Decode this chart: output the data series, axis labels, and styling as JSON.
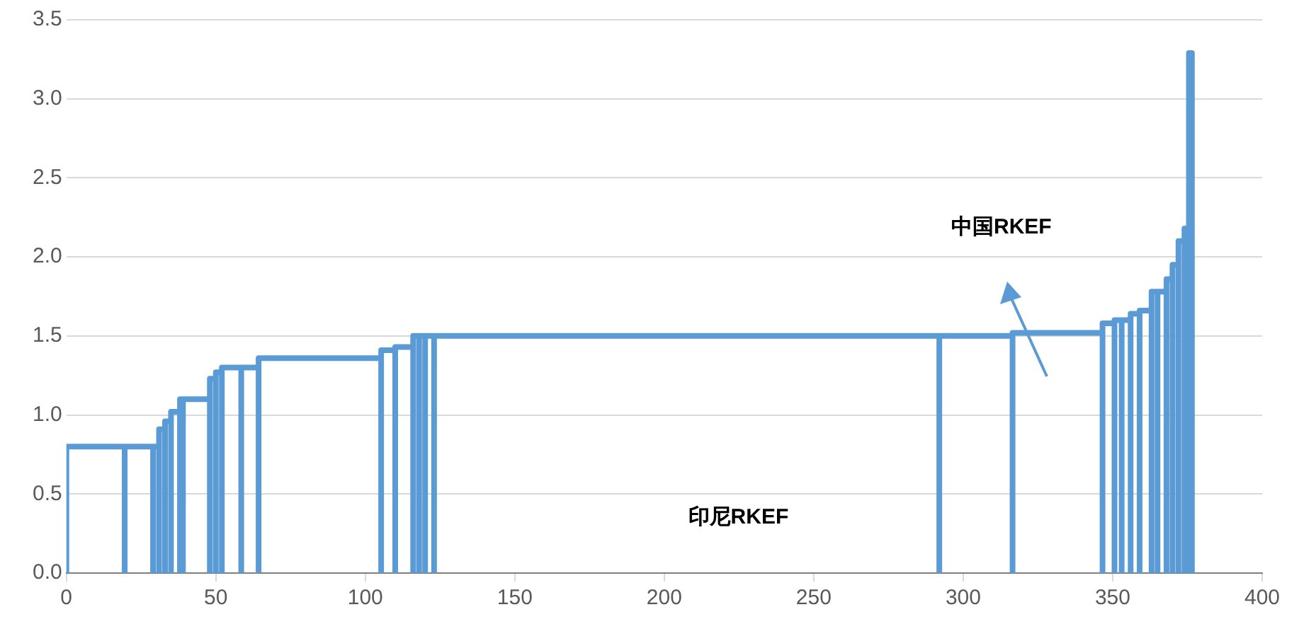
{
  "chart_data": {
    "type": "line",
    "xlim": [
      0,
      400
    ],
    "xticks": [
      0,
      50,
      100,
      150,
      200,
      250,
      300,
      350,
      400
    ],
    "ylim": [
      0,
      3.5
    ],
    "yticks": [
      {
        "value": 0,
        "label": "0.0"
      },
      0.5,
      {
        "value": 1,
        "label": "1.0"
      },
      1.5,
      {
        "value": 2,
        "label": "2.0"
      },
      2.5,
      {
        "value": 3,
        "label": "3.0"
      },
      3.5
    ],
    "grid": "y",
    "marker": "none",
    "annotations": [
      "中国RKEF",
      "印尼RKEF"
    ],
    "series": [
      {
        "color": "#5b9bd5",
        "x": [
          0,
          0,
          19.5,
          19.5,
          19.5,
          19.5,
          29,
          29,
          29,
          29,
          31,
          31,
          31,
          31,
          33,
          33,
          33,
          33,
          35,
          35,
          35,
          35,
          38,
          38,
          38,
          38,
          39,
          39,
          39,
          39,
          48,
          48,
          48,
          48,
          50,
          50,
          50,
          50,
          52,
          52,
          52,
          52,
          58.5,
          58.5,
          58.5,
          58.5,
          64.3,
          64.3,
          64.3,
          64.3,
          105.3,
          105.3,
          105.3,
          105.3,
          110,
          110,
          110,
          110,
          116,
          116,
          116,
          116,
          118,
          118,
          118,
          118,
          120,
          120,
          120,
          120,
          123,
          123,
          123,
          123,
          292,
          292,
          292,
          292,
          316.5,
          316.5,
          316.5,
          316.5,
          346.6,
          346.6,
          346.6,
          346.6,
          350.6,
          350.6,
          350.6,
          350.6,
          353,
          353,
          353,
          353,
          356,
          356,
          356,
          356,
          359,
          359,
          359,
          359,
          363,
          363,
          363,
          363,
          365,
          365,
          365,
          365,
          368,
          368,
          368,
          368,
          370,
          370,
          370,
          370,
          372,
          372,
          372,
          372,
          374,
          374,
          374,
          374,
          375.5,
          375.5,
          375.5,
          375.5,
          376.5,
          376.5
        ],
        "values": [
          0,
          0.8,
          0.8,
          0,
          0,
          0.8,
          0.8,
          0,
          0,
          0.8,
          0.8,
          0,
          0,
          0.91,
          0.91,
          0,
          0,
          0.96,
          0.96,
          0,
          0,
          1.02,
          1.02,
          0,
          0,
          1.1,
          1.1,
          0,
          0,
          1.1,
          1.1,
          0,
          0,
          1.23,
          1.23,
          0,
          0,
          1.27,
          1.27,
          0,
          0,
          1.3,
          1.3,
          0,
          0,
          1.3,
          1.3,
          0,
          0,
          1.36,
          1.36,
          0,
          0,
          1.41,
          1.41,
          0,
          0,
          1.43,
          1.43,
          0,
          0,
          1.5,
          1.5,
          0,
          0,
          1.5,
          1.5,
          0,
          0,
          1.5,
          1.5,
          0,
          0,
          1.5,
          1.5,
          0,
          0,
          1.5,
          1.5,
          0,
          0,
          1.52,
          1.52,
          0,
          0,
          1.58,
          1.58,
          0,
          0,
          1.6,
          1.6,
          0,
          0,
          1.6,
          1.6,
          0,
          0,
          1.64,
          1.64,
          0,
          0,
          1.66,
          1.66,
          0,
          0,
          1.78,
          1.78,
          0,
          0,
          1.78,
          1.78,
          0,
          0,
          1.86,
          1.86,
          0,
          0,
          1.95,
          1.95,
          0,
          0,
          2.1,
          2.1,
          0,
          0,
          2.18,
          2.18,
          0,
          0,
          3.29,
          3.29,
          0
        ]
      }
    ]
  }
}
